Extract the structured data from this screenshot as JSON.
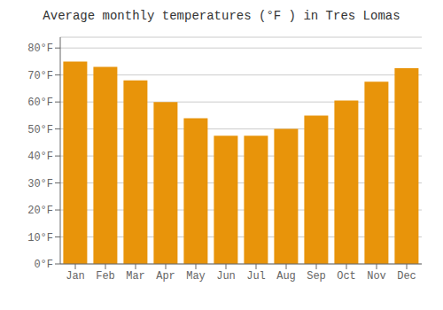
{
  "chart_data": {
    "type": "bar",
    "title": "Average monthly temperatures (°F ) in Tres Lomas",
    "categories": [
      "Jan",
      "Feb",
      "Mar",
      "Apr",
      "May",
      "Jun",
      "Jul",
      "Aug",
      "Sep",
      "Oct",
      "Nov",
      "Dec"
    ],
    "values": [
      75,
      73,
      68,
      60,
      54,
      47.5,
      47.5,
      50,
      55,
      60.5,
      67.5,
      72.5
    ],
    "color": "#E8940A",
    "ylim": [
      0,
      84
    ],
    "yticks": [
      {
        "value": 0,
        "label": "0°F"
      },
      {
        "value": 10,
        "label": "10°F"
      },
      {
        "value": 20,
        "label": "20°F"
      },
      {
        "value": 30,
        "label": "30°F"
      },
      {
        "value": 40,
        "label": "40°F"
      },
      {
        "value": 50,
        "label": "50°F"
      },
      {
        "value": 60,
        "label": "60°F"
      },
      {
        "value": 70,
        "label": "70°F"
      },
      {
        "value": 80,
        "label": "80°F"
      }
    ],
    "grid": true
  }
}
